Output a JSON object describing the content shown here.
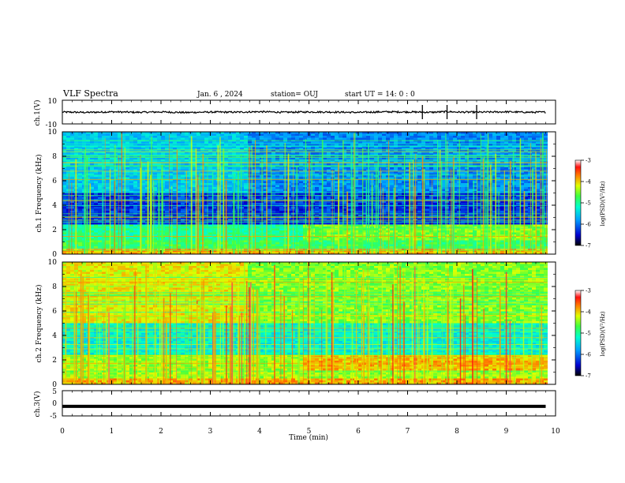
{
  "header": {
    "title": "VLF Spectra",
    "date": "Jan. 6 , 2024",
    "station": "station= OUJ",
    "start": "start  UT =   14: 0  : 0"
  },
  "chart_data": [
    {
      "type": "line",
      "name": "ch1-waveform",
      "ylabel": "ch.1(V)",
      "ylim": [
        -10,
        10
      ],
      "y_ticks": [
        "10",
        "-10"
      ],
      "x": [
        0,
        0.5,
        1,
        1.5,
        2,
        2.5,
        3,
        3.5,
        4,
        4.5,
        5,
        5.5,
        6,
        6.5,
        7,
        7.5,
        7.8,
        8,
        8.5,
        9,
        9.5,
        9.8
      ],
      "y": [
        0.0,
        -0.3,
        0.2,
        -0.2,
        0.1,
        -0.4,
        0.0,
        -0.1,
        0.3,
        -0.2,
        0.1,
        0.0,
        -0.3,
        0.2,
        0.1,
        -0.2,
        0.4,
        0.0,
        -0.1,
        0.2,
        -0.2,
        0.0
      ]
    },
    {
      "type": "heatmap",
      "name": "ch1-spectrogram",
      "ylabel": "ch.1 Frequency (kHz)",
      "ylim": [
        0,
        10
      ],
      "y_ticks": [
        "0",
        "2",
        "4",
        "6",
        "8",
        "10"
      ],
      "colorbar": {
        "label": "log(PSD)(V²/Hz)",
        "range": [
          -7,
          -3
        ],
        "ticks": [
          "-3",
          "-4",
          "-5",
          "-6",
          "-7"
        ]
      }
    },
    {
      "type": "heatmap",
      "name": "ch2-spectrogram",
      "ylabel": "ch.2 Frequency (kHz)",
      "ylim": [
        0,
        10
      ],
      "y_ticks": [
        "0",
        "2",
        "4",
        "6",
        "8",
        "10"
      ],
      "colorbar": {
        "label": "log(PSD)(V²/Hz)",
        "range": [
          -7,
          -3
        ],
        "ticks": [
          "-3",
          "-4",
          "-5",
          "-6",
          "-7"
        ]
      }
    },
    {
      "type": "line",
      "name": "ch3-waveform",
      "ylabel": "ch.3(V)",
      "ylim": [
        -5,
        5
      ],
      "y_ticks": [
        "5",
        "0",
        "-5"
      ],
      "x": [
        0,
        9.8
      ],
      "y": [
        -1.2,
        -1.2
      ]
    }
  ],
  "x_axis": {
    "label": "Time (min)",
    "range": [
      0,
      10
    ],
    "ticks": [
      "0",
      "1",
      "2",
      "3",
      "4",
      "5",
      "6",
      "7",
      "8",
      "9",
      "10"
    ]
  },
  "colors": {
    "colormap": [
      "#000080",
      "#0000ff",
      "#00a0ff",
      "#00ffff",
      "#00ff80",
      "#80ff00",
      "#ffff00",
      "#ff8000",
      "#ff0000",
      "#ffffff"
    ]
  }
}
